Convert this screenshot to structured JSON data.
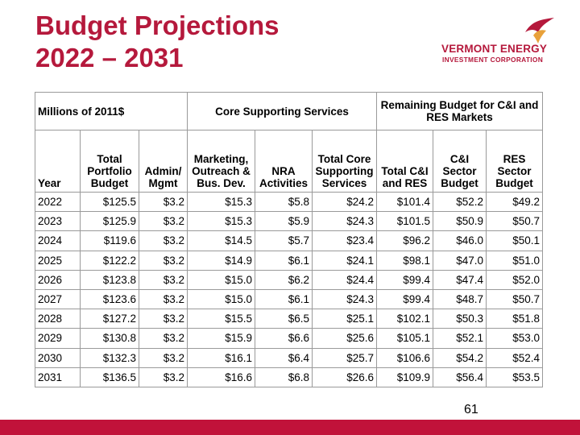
{
  "slide": {
    "title_line1": "Budget Projections",
    "title_line2": "2022 – 2031",
    "page_number": "61"
  },
  "logo": {
    "line1": "VERMONT ENERGY",
    "line2": "INVESTMENT CORPORATION"
  },
  "table": {
    "units_label": "Millions of 2011$",
    "group_core": "Core Supporting Services",
    "group_remaining": "Remaining Budget for C&I and RES Markets",
    "columns": {
      "year": "Year",
      "total_portfolio": "Total Portfolio Budget",
      "admin": "Admin/ Mgmt",
      "marketing": "Marketing, Outreach & Bus. Dev.",
      "nra": "NRA Activities",
      "total_core": "Total Core Supporting Services",
      "total_ci_res": "Total C&I and RES",
      "ci_sector": "C&I Sector Budget",
      "res_sector": "RES Sector Budget"
    },
    "rows": [
      [
        "2022",
        "$125.5",
        "$3.2",
        "$15.3",
        "$5.8",
        "$24.2",
        "$101.4",
        "$52.2",
        "$49.2"
      ],
      [
        "2023",
        "$125.9",
        "$3.2",
        "$15.3",
        "$5.9",
        "$24.3",
        "$101.5",
        "$50.9",
        "$50.7"
      ],
      [
        "2024",
        "$119.6",
        "$3.2",
        "$14.5",
        "$5.7",
        "$23.4",
        "$96.2",
        "$46.0",
        "$50.1"
      ],
      [
        "2025",
        "$122.2",
        "$3.2",
        "$14.9",
        "$6.1",
        "$24.1",
        "$98.1",
        "$47.0",
        "$51.0"
      ],
      [
        "2026",
        "$123.8",
        "$3.2",
        "$15.0",
        "$6.2",
        "$24.4",
        "$99.4",
        "$47.4",
        "$52.0"
      ],
      [
        "2027",
        "$123.6",
        "$3.2",
        "$15.0",
        "$6.1",
        "$24.3",
        "$99.4",
        "$48.7",
        "$50.7"
      ],
      [
        "2028",
        "$127.2",
        "$3.2",
        "$15.5",
        "$6.5",
        "$25.1",
        "$102.1",
        "$50.3",
        "$51.8"
      ],
      [
        "2029",
        "$130.8",
        "$3.2",
        "$15.9",
        "$6.6",
        "$25.6",
        "$105.1",
        "$52.1",
        "$53.0"
      ],
      [
        "2030",
        "$132.3",
        "$3.2",
        "$16.1",
        "$6.4",
        "$25.7",
        "$106.6",
        "$54.2",
        "$52.4"
      ],
      [
        "2031",
        "$136.5",
        "$3.2",
        "$16.6",
        "$6.8",
        "$26.6",
        "$109.9",
        "$56.4",
        "$53.5"
      ]
    ]
  },
  "colors": {
    "brand_red": "#b5193c",
    "footer_red": "#c1123a",
    "logo_orange": "#e8a13a"
  },
  "icons": {
    "logo_mark": "veic-bird-mark-icon"
  }
}
